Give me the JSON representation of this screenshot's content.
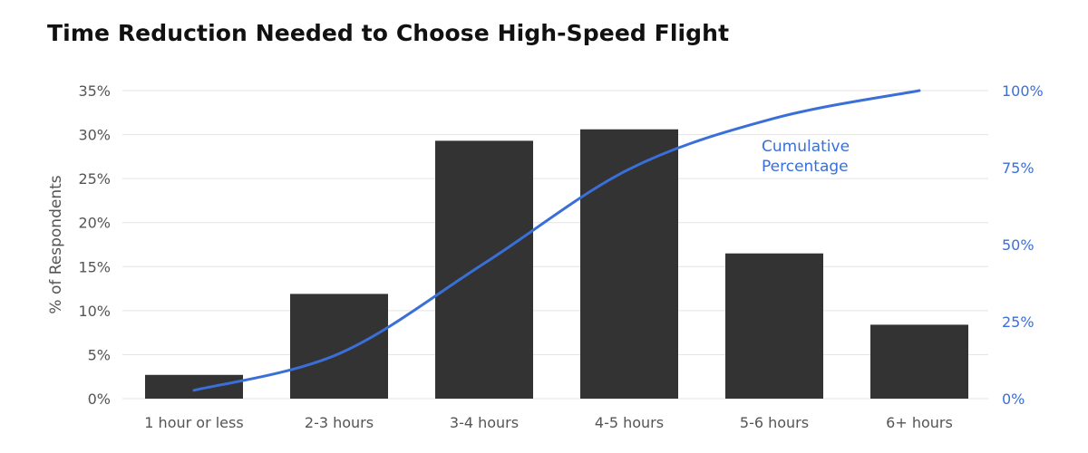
{
  "chart_data": {
    "type": "bar",
    "title": "Time Reduction Needed to Choose High-Speed Flight",
    "categories": [
      "1 hour or less",
      "2-3 hours",
      "3-4 hours",
      "4-5 hours",
      "5-6 hours",
      "6+ hours"
    ],
    "series": [
      {
        "values": [
          2.7,
          11.9,
          29.3,
          30.6,
          16.5,
          8.4
        ],
        "color": "#333333",
        "axis": "left"
      },
      {
        "name": "Cumulative Percentage",
        "type": "line",
        "values": [
          2.7,
          14.6,
          43.9,
          74.5,
          91.0,
          100
        ],
        "color": "#3a6fd8",
        "axis": "right"
      }
    ],
    "ylabel": "% of Respondents",
    "ylim": [
      0,
      35
    ],
    "yticks": [
      "0%",
      "5%",
      "10%",
      "15%",
      "20%",
      "25%",
      "30%",
      "35%"
    ],
    "y2lim": [
      0,
      100
    ],
    "y2ticks": [
      "0%",
      "25%",
      "50%",
      "75%",
      "100%"
    ],
    "grid": true,
    "line_label": "Cumulative\nPercentage",
    "colors": {
      "bar": "#333333",
      "line": "#3a6fd8",
      "grid": "#e3e3e3",
      "text": "#555555"
    }
  }
}
